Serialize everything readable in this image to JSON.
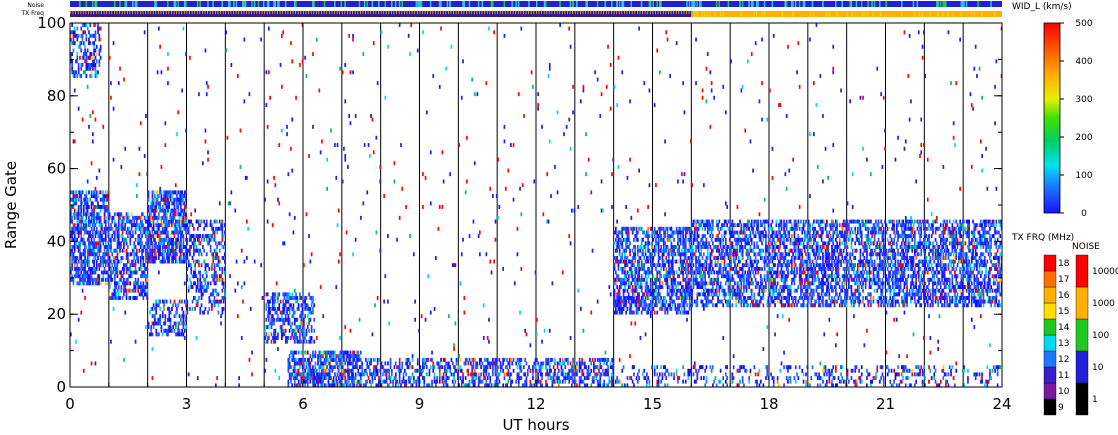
{
  "chart_data": {
    "type": "heatmap",
    "xlabel": "UT hours",
    "ylabel": "Range Gate",
    "xlim": [
      0,
      24
    ],
    "ylim": [
      0,
      100
    ],
    "x_ticks": [
      "0",
      "3",
      "6",
      "9",
      "12",
      "15",
      "18",
      "21",
      "24"
    ],
    "y_ticks": [
      "0",
      "20",
      "40",
      "60",
      "80",
      "100"
    ],
    "hour_lines": [
      1,
      2,
      3,
      4,
      5,
      6,
      7,
      8,
      9,
      10,
      11,
      12,
      13,
      14,
      15,
      16,
      17,
      18,
      19,
      20,
      21,
      22,
      23
    ],
    "top_bars": {
      "noise_label": "Noise",
      "freq_label": "TX Freq",
      "freq_switch_hour": 16.0
    },
    "colorbar": {
      "label": "WID_L (km/s)",
      "ticks": [
        "0",
        "100",
        "200",
        "300",
        "400",
        "500"
      ],
      "range": [
        0,
        500
      ]
    },
    "freq_scale": {
      "label": "TX FRQ (MHz)",
      "ticks": [
        "9",
        "10",
        "11",
        "12",
        "13",
        "14",
        "15",
        "16",
        "17",
        "18"
      ]
    },
    "noise_scale": {
      "label": "NOISE",
      "ticks": [
        "1",
        "10",
        "100",
        "1000",
        "10000"
      ]
    },
    "regions": [
      {
        "t0": 0.0,
        "t1": 1.0,
        "g0": 28,
        "g1": 54,
        "density": 0.65
      },
      {
        "t0": 1.0,
        "t1": 2.0,
        "g0": 24,
        "g1": 48,
        "density": 0.55
      },
      {
        "t0": 2.0,
        "t1": 3.0,
        "g0": 34,
        "g1": 54,
        "density": 0.7
      },
      {
        "t0": 2.0,
        "t1": 3.0,
        "g0": 14,
        "g1": 24,
        "density": 0.4
      },
      {
        "t0": 3.0,
        "t1": 4.0,
        "g0": 20,
        "g1": 46,
        "density": 0.35
      },
      {
        "t0": 5.0,
        "t1": 6.3,
        "g0": 12,
        "g1": 26,
        "density": 0.45
      },
      {
        "t0": 5.6,
        "t1": 7.5,
        "g0": 0,
        "g1": 10,
        "density": 0.7
      },
      {
        "t0": 7.5,
        "t1": 14.0,
        "g0": 0,
        "g1": 8,
        "density": 0.45
      },
      {
        "t0": 14.0,
        "t1": 16.0,
        "g0": 20,
        "g1": 44,
        "density": 0.6
      },
      {
        "t0": 14.0,
        "t1": 24.0,
        "g0": 0,
        "g1": 6,
        "density": 0.2
      },
      {
        "t0": 16.0,
        "t1": 24.0,
        "g0": 22,
        "g1": 46,
        "density": 0.55
      },
      {
        "t0": 0.0,
        "t1": 0.8,
        "g0": 85,
        "g1": 100,
        "density": 0.4
      }
    ],
    "scatter_fraction": 0.012
  }
}
